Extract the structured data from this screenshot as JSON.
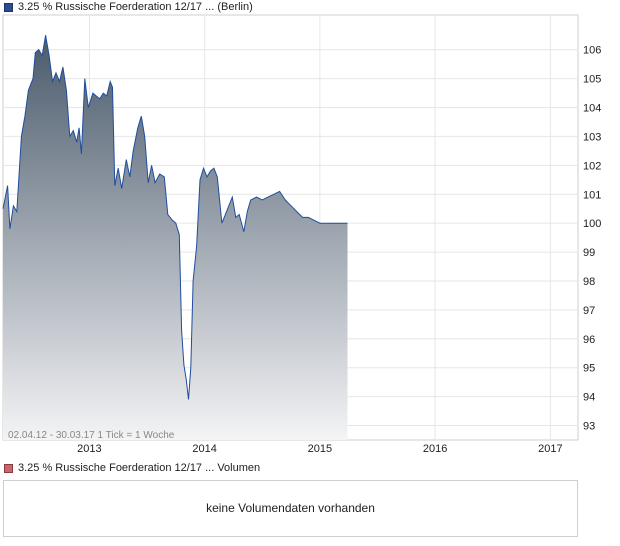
{
  "price_legend": {
    "label": "3.25 % Russische Foerderation 12/17 ... (Berlin)",
    "color": "#2b4d8f"
  },
  "volume_legend": {
    "label": "3.25 % Russische Foerderation 12/17 ... Volumen",
    "color": "#c9666d"
  },
  "info_text": "02.04.12 - 30.03.17   1 Tick = 1 Woche",
  "volume_panel": {
    "message": "keine Volumendaten vorhanden"
  },
  "chart_data": {
    "type": "area",
    "xlabel": "",
    "ylabel": "",
    "x_range": [
      2012.25,
      2017.24
    ],
    "ylim": [
      92.5,
      107.2
    ],
    "x_ticks": [
      {
        "x": 2013.0,
        "label": "2013"
      },
      {
        "x": 2014.0,
        "label": "2014"
      },
      {
        "x": 2015.0,
        "label": "2015"
      },
      {
        "x": 2016.0,
        "label": "2016"
      },
      {
        "x": 2017.0,
        "label": "2017"
      }
    ],
    "y_ticks": [
      93,
      94,
      95,
      96,
      97,
      98,
      99,
      100,
      101,
      102,
      103,
      104,
      105,
      106
    ],
    "grid": true,
    "line_color": "#1f4e9c",
    "fill_top_color": "#4a5a6b",
    "fill_bottom_color": "#f4f4f6",
    "series": [
      {
        "points": [
          [
            2012.25,
            100.5
          ],
          [
            2012.29,
            101.3
          ],
          [
            2012.31,
            99.8
          ],
          [
            2012.34,
            100.6
          ],
          [
            2012.37,
            100.4
          ],
          [
            2012.41,
            103.0
          ],
          [
            2012.44,
            103.7
          ],
          [
            2012.47,
            104.6
          ],
          [
            2012.51,
            105.0
          ],
          [
            2012.53,
            105.9
          ],
          [
            2012.56,
            106.0
          ],
          [
            2012.59,
            105.8
          ],
          [
            2012.62,
            106.5
          ],
          [
            2012.65,
            105.8
          ],
          [
            2012.68,
            104.9
          ],
          [
            2012.71,
            105.2
          ],
          [
            2012.74,
            104.9
          ],
          [
            2012.77,
            105.4
          ],
          [
            2012.8,
            104.6
          ],
          [
            2012.83,
            103.0
          ],
          [
            2012.86,
            103.2
          ],
          [
            2012.89,
            102.8
          ],
          [
            2012.91,
            103.3
          ],
          [
            2012.93,
            102.4
          ],
          [
            2012.96,
            105.0
          ],
          [
            2012.99,
            104.0
          ],
          [
            2013.03,
            104.5
          ],
          [
            2013.06,
            104.4
          ],
          [
            2013.09,
            104.3
          ],
          [
            2013.12,
            104.5
          ],
          [
            2013.15,
            104.4
          ],
          [
            2013.18,
            104.9
          ],
          [
            2013.2,
            104.7
          ],
          [
            2013.22,
            101.3
          ],
          [
            2013.25,
            101.9
          ],
          [
            2013.28,
            101.2
          ],
          [
            2013.32,
            102.2
          ],
          [
            2013.35,
            101.6
          ],
          [
            2013.38,
            102.5
          ],
          [
            2013.42,
            103.3
          ],
          [
            2013.45,
            103.7
          ],
          [
            2013.48,
            103.0
          ],
          [
            2013.51,
            101.4
          ],
          [
            2013.54,
            102.0
          ],
          [
            2013.57,
            101.4
          ],
          [
            2013.61,
            101.7
          ],
          [
            2013.65,
            101.6
          ],
          [
            2013.68,
            100.3
          ],
          [
            2013.72,
            100.1
          ],
          [
            2013.75,
            100.0
          ],
          [
            2013.78,
            99.6
          ],
          [
            2013.8,
            96.3
          ],
          [
            2013.82,
            95.1
          ],
          [
            2013.84,
            94.6
          ],
          [
            2013.86,
            93.9
          ],
          [
            2013.88,
            95.0
          ],
          [
            2013.9,
            98.0
          ],
          [
            2013.93,
            99.2
          ],
          [
            2013.96,
            101.5
          ],
          [
            2013.99,
            101.9
          ],
          [
            2014.02,
            101.6
          ],
          [
            2014.05,
            101.8
          ],
          [
            2014.08,
            101.9
          ],
          [
            2014.11,
            101.6
          ],
          [
            2014.15,
            100.0
          ],
          [
            2014.2,
            100.5
          ],
          [
            2014.24,
            100.9
          ],
          [
            2014.27,
            100.2
          ],
          [
            2014.3,
            100.3
          ],
          [
            2014.34,
            99.7
          ],
          [
            2014.37,
            100.4
          ],
          [
            2014.4,
            100.8
          ],
          [
            2014.45,
            100.9
          ],
          [
            2014.5,
            100.8
          ],
          [
            2014.55,
            100.9
          ],
          [
            2014.6,
            101.0
          ],
          [
            2014.65,
            101.1
          ],
          [
            2014.7,
            100.8
          ],
          [
            2014.75,
            100.6
          ],
          [
            2014.8,
            100.4
          ],
          [
            2014.85,
            100.2
          ],
          [
            2014.9,
            100.2
          ],
          [
            2014.95,
            100.1
          ],
          [
            2015.0,
            100.0
          ],
          [
            2015.05,
            100.0
          ],
          [
            2015.1,
            100.0
          ],
          [
            2015.15,
            100.0
          ],
          [
            2015.2,
            100.0
          ],
          [
            2015.24,
            100.0
          ]
        ]
      }
    ]
  }
}
